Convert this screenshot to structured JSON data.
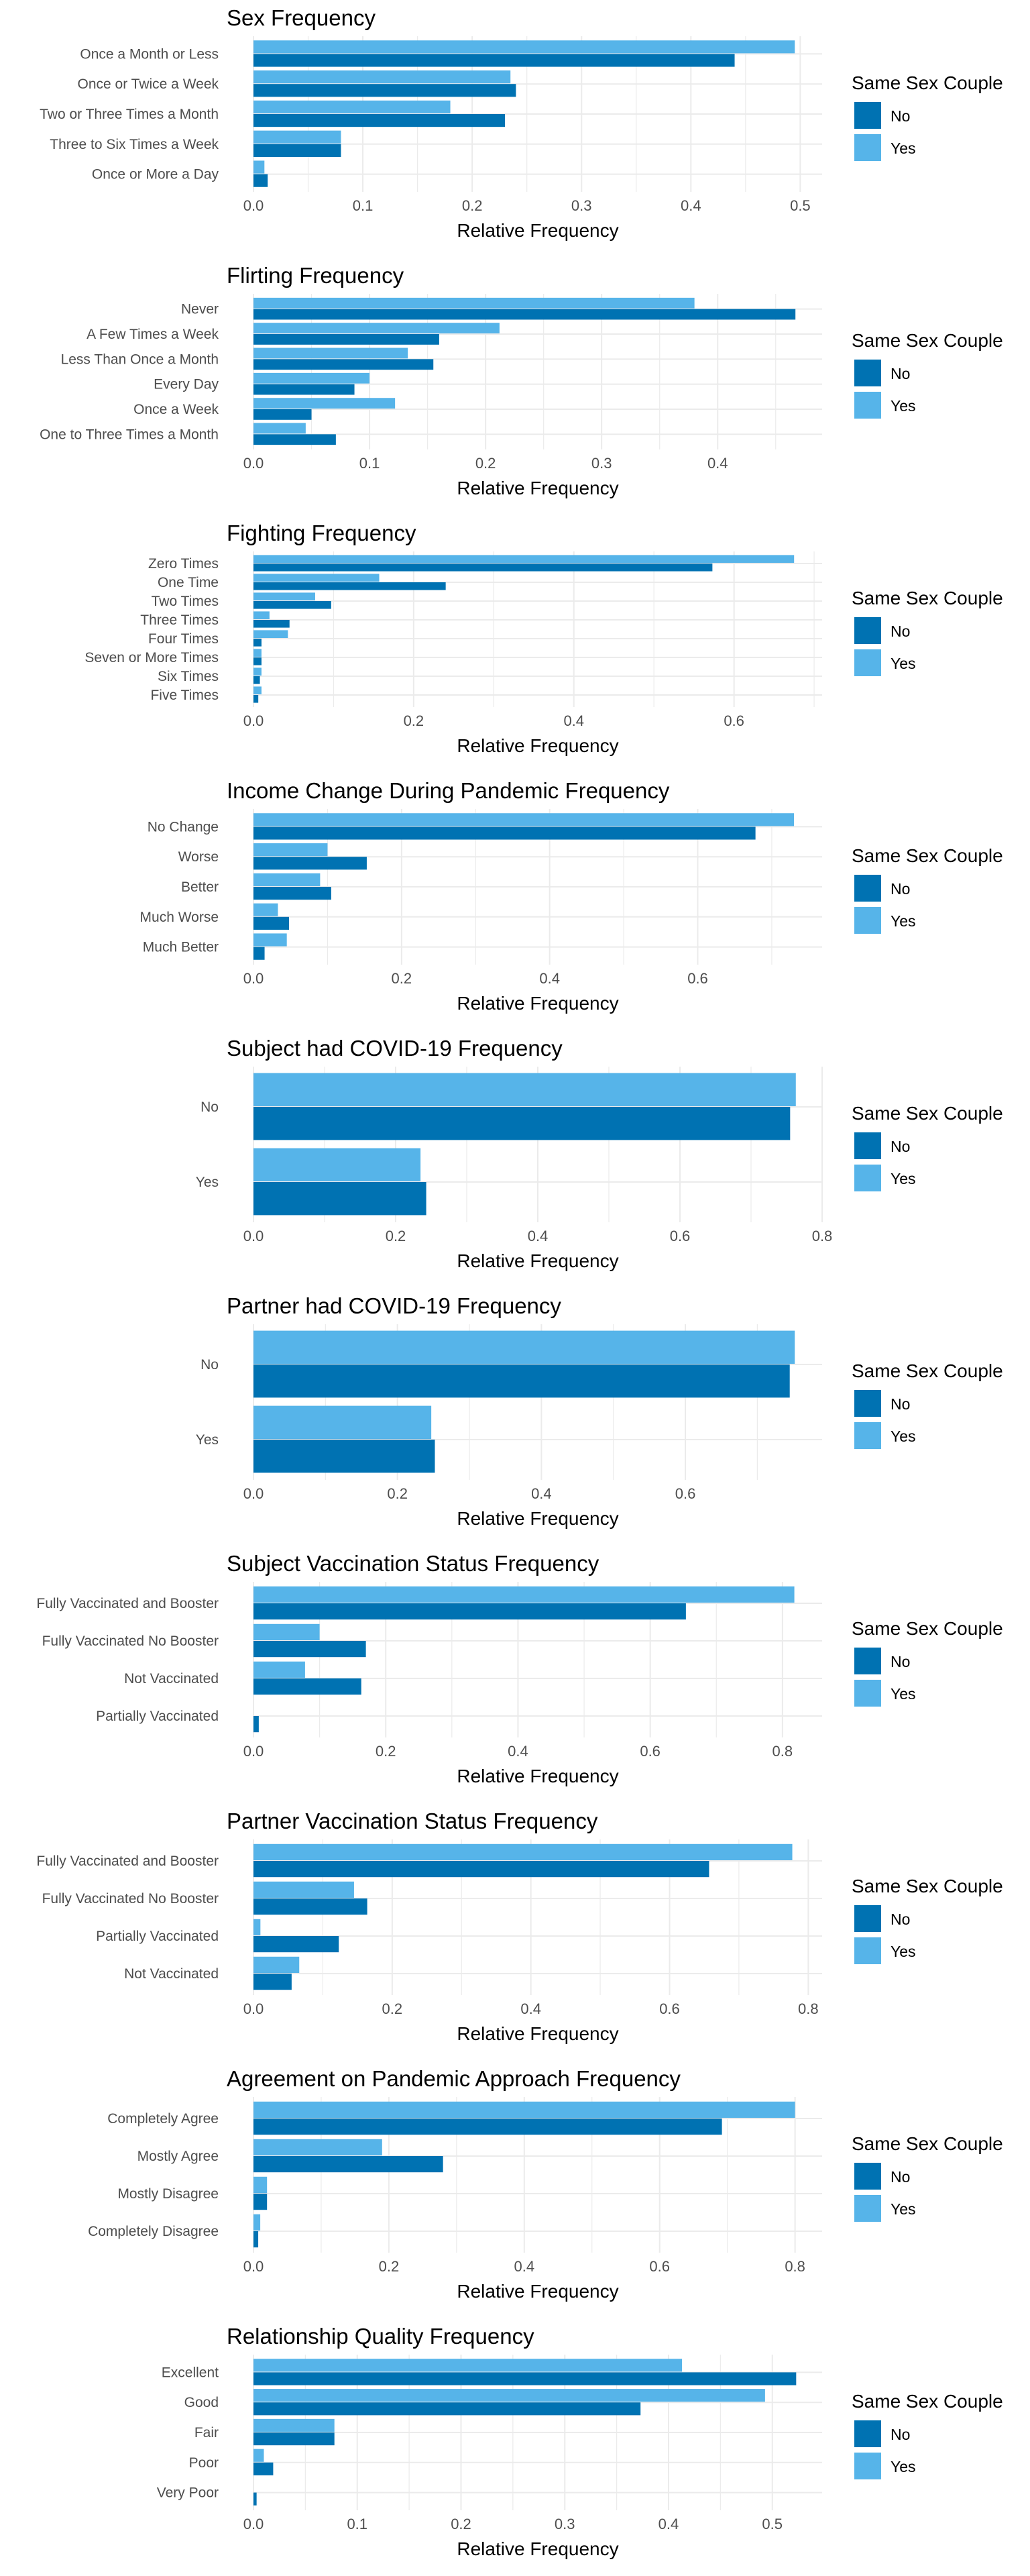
{
  "colors": {
    "no": "#0072B2",
    "yes": "#56B4E9",
    "grid": "#ebebeb",
    "text": "#4d4d4d"
  },
  "legend": {
    "title": "Same Sex Couple",
    "items": [
      "No",
      "Yes"
    ]
  },
  "xlabel": "Relative Frequency",
  "chart_data": [
    {
      "type": "bar",
      "title": "Sex Frequency",
      "xlabel": "Relative Frequency",
      "categories": [
        "Once a Month or Less",
        "Once or Twice a Week",
        "Two or Three Times a Month",
        "Three to Six Times a Week",
        "Once or More a Day"
      ],
      "series": [
        {
          "name": "No",
          "values": [
            0.44,
            0.24,
            0.23,
            0.08,
            0.013
          ]
        },
        {
          "name": "Yes",
          "values": [
            0.495,
            0.235,
            0.18,
            0.08,
            0.01
          ]
        }
      ],
      "xlim": [
        0,
        0.52
      ],
      "ticks": [
        0,
        0.1,
        0.2,
        0.3,
        0.4,
        0.5
      ],
      "tick_labels": [
        "0.0",
        "0.1",
        "0.2",
        "0.3",
        "0.4",
        "0.5"
      ]
    },
    {
      "type": "bar",
      "title": "Flirting Frequency",
      "xlabel": "Relative Frequency",
      "categories": [
        "Never",
        "A Few Times a Week",
        "Less Than Once a Month",
        "Every Day",
        "Once a Week",
        "One to Three Times a Month"
      ],
      "series": [
        {
          "name": "No",
          "values": [
            0.467,
            0.16,
            0.155,
            0.087,
            0.05,
            0.071
          ]
        },
        {
          "name": "Yes",
          "values": [
            0.38,
            0.212,
            0.133,
            0.1,
            0.122,
            0.045
          ]
        }
      ],
      "xlim": [
        0,
        0.49
      ],
      "ticks": [
        0,
        0.1,
        0.2,
        0.3,
        0.4
      ],
      "tick_labels": [
        "0.0",
        "0.1",
        "0.2",
        "0.3",
        "0.4"
      ]
    },
    {
      "type": "bar",
      "title": "Fighting Frequency",
      "xlabel": "Relative Frequency",
      "categories": [
        "Zero Times",
        "One Time",
        "Two Times",
        "Three Times",
        "Four Times",
        "Seven or More Times",
        "Six Times",
        "Five Times"
      ],
      "series": [
        {
          "name": "No",
          "values": [
            0.573,
            0.24,
            0.097,
            0.045,
            0.01,
            0.01,
            0.008,
            0.006
          ]
        },
        {
          "name": "Yes",
          "values": [
            0.675,
            0.157,
            0.077,
            0.02,
            0.043,
            0.01,
            0.01,
            0.01
          ]
        }
      ],
      "xlim": [
        0,
        0.71
      ],
      "ticks": [
        0,
        0.2,
        0.4,
        0.6
      ],
      "tick_labels": [
        "0.0",
        "0.2",
        "0.4",
        "0.6"
      ]
    },
    {
      "type": "bar",
      "title": "Income Change During Pandemic Frequency",
      "xlabel": "Relative Frequency",
      "categories": [
        "No Change",
        "Worse",
        "Better",
        "Much Worse",
        "Much Better"
      ],
      "series": [
        {
          "name": "No",
          "values": [
            0.678,
            0.153,
            0.105,
            0.048,
            0.015
          ]
        },
        {
          "name": "Yes",
          "values": [
            0.73,
            0.1,
            0.09,
            0.033,
            0.045
          ]
        }
      ],
      "xlim": [
        0,
        0.768
      ],
      "ticks": [
        0,
        0.2,
        0.4,
        0.6
      ],
      "tick_labels": [
        "0.0",
        "0.2",
        "0.4",
        "0.6"
      ]
    },
    {
      "type": "bar",
      "title": "Subject had COVID-19 Frequency",
      "xlabel": "Relative Frequency",
      "categories": [
        "No",
        "Yes"
      ],
      "series": [
        {
          "name": "No",
          "values": [
            0.755,
            0.243
          ]
        },
        {
          "name": "Yes",
          "values": [
            0.763,
            0.235
          ]
        }
      ],
      "xlim": [
        0,
        0.8
      ],
      "ticks": [
        0,
        0.2,
        0.4,
        0.6,
        0.8
      ],
      "tick_labels": [
        "0.0",
        "0.2",
        "0.4",
        "0.6",
        "0.8"
      ]
    },
    {
      "type": "bar",
      "title": "Partner had COVID-19 Frequency",
      "xlabel": "Relative Frequency",
      "categories": [
        "No",
        "Yes"
      ],
      "series": [
        {
          "name": "No",
          "values": [
            0.745,
            0.252
          ]
        },
        {
          "name": "Yes",
          "values": [
            0.752,
            0.247
          ]
        }
      ],
      "xlim": [
        0,
        0.79
      ],
      "ticks": [
        0,
        0.2,
        0.4,
        0.6
      ],
      "tick_labels": [
        "0.0",
        "0.2",
        "0.4",
        "0.6"
      ]
    },
    {
      "type": "bar",
      "title": "Subject Vaccination Status Frequency",
      "xlabel": "Relative Frequency",
      "categories": [
        "Fully Vaccinated and Booster",
        "Fully Vaccinated No Booster",
        "Not Vaccinated",
        "Partially Vaccinated"
      ],
      "series": [
        {
          "name": "No",
          "values": [
            0.654,
            0.17,
            0.163,
            0.008
          ]
        },
        {
          "name": "Yes",
          "values": [
            0.818,
            0.1,
            0.078,
            0
          ]
        }
      ],
      "xlim": [
        0,
        0.86
      ],
      "ticks": [
        0,
        0.2,
        0.4,
        0.6,
        0.8
      ],
      "tick_labels": [
        "0.0",
        "0.2",
        "0.4",
        "0.6",
        "0.8"
      ]
    },
    {
      "type": "bar",
      "title": "Partner Vaccination Status Frequency",
      "xlabel": "Relative Frequency",
      "categories": [
        "Fully Vaccinated and Booster",
        "Fully Vaccinated No Booster",
        "Partially Vaccinated",
        "Not Vaccinated"
      ],
      "series": [
        {
          "name": "No",
          "values": [
            0.657,
            0.164,
            0.123,
            0.055
          ]
        },
        {
          "name": "Yes",
          "values": [
            0.777,
            0.145,
            0.01,
            0.066
          ]
        }
      ],
      "xlim": [
        0,
        0.82
      ],
      "ticks": [
        0,
        0.2,
        0.4,
        0.6,
        0.8
      ],
      "tick_labels": [
        "0.0",
        "0.2",
        "0.4",
        "0.6",
        "0.8"
      ]
    },
    {
      "type": "bar",
      "title": "Agreement on Pandemic Approach Frequency",
      "xlabel": "Relative Frequency",
      "categories": [
        "Completely Agree",
        "Mostly Agree",
        "Mostly Disagree",
        "Completely Disagree"
      ],
      "series": [
        {
          "name": "No",
          "values": [
            0.692,
            0.28,
            0.02,
            0.007
          ]
        },
        {
          "name": "Yes",
          "values": [
            0.8,
            0.19,
            0.02,
            0.01
          ]
        }
      ],
      "xlim": [
        0,
        0.84
      ],
      "ticks": [
        0,
        0.2,
        0.4,
        0.6,
        0.8
      ],
      "tick_labels": [
        "0.0",
        "0.2",
        "0.4",
        "0.6",
        "0.8"
      ]
    },
    {
      "type": "bar",
      "title": "Relationship Quality Frequency",
      "xlabel": "Relative Frequency",
      "categories": [
        "Excellent",
        "Good",
        "Fair",
        "Poor",
        "Very Poor"
      ],
      "series": [
        {
          "name": "No",
          "values": [
            0.523,
            0.373,
            0.078,
            0.019,
            0.003
          ]
        },
        {
          "name": "Yes",
          "values": [
            0.413,
            0.493,
            0.078,
            0.01,
            0
          ]
        }
      ],
      "xlim": [
        0,
        0.548
      ],
      "ticks": [
        0,
        0.1,
        0.2,
        0.3,
        0.4,
        0.5
      ],
      "tick_labels": [
        "0.0",
        "0.1",
        "0.2",
        "0.3",
        "0.4",
        "0.5"
      ]
    }
  ]
}
